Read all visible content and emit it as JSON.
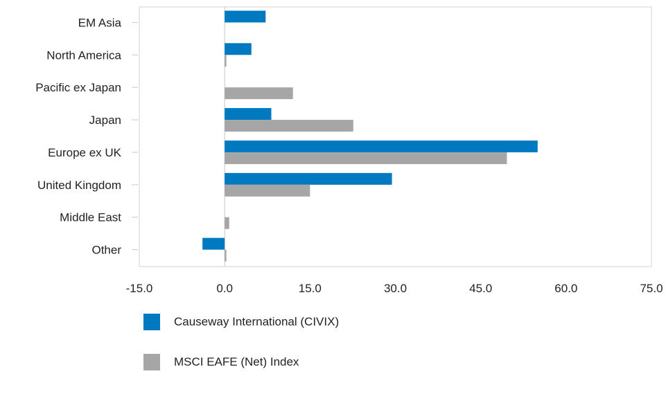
{
  "chart_data": {
    "type": "bar",
    "orientation": "horizontal",
    "categories": [
      "EM Asia",
      "North America",
      "Pacific ex Japan",
      "Japan",
      "Europe ex UK",
      "United Kingdom",
      "Middle East",
      "Other"
    ],
    "series": [
      {
        "name": "Causeway International (CIVIX)",
        "color": "#0079c1",
        "values": [
          7.2,
          4.7,
          0.0,
          8.2,
          55.0,
          29.4,
          0.0,
          -3.9
        ]
      },
      {
        "name": "MSCI EAFE (Net) Index",
        "color": "#a6a6a6",
        "values": [
          0.0,
          0.3,
          12.0,
          22.6,
          49.6,
          15.0,
          0.8,
          0.3
        ]
      }
    ],
    "xlim": [
      -15,
      75
    ],
    "xticks": [
      "-15.0",
      "0.0",
      "15.0",
      "30.0",
      "45.0",
      "60.0",
      "75.0"
    ],
    "grid": false,
    "legend_position": "bottom"
  }
}
